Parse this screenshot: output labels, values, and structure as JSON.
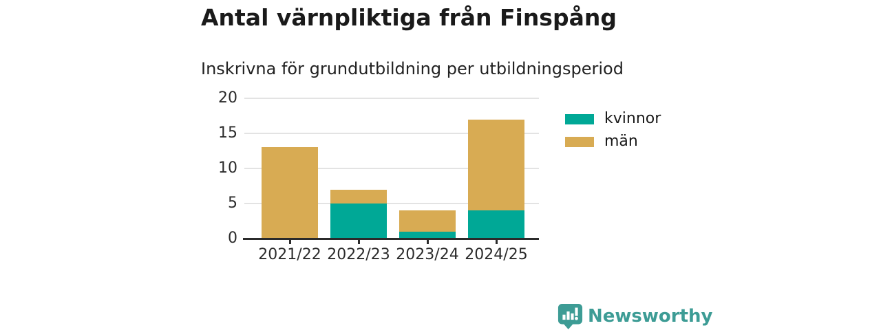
{
  "header": {
    "title": "Antal värnpliktiga från Finspång",
    "subtitle": "Inskrivna för grundutbildning per utbildningsperiod"
  },
  "chart_data": {
    "type": "bar",
    "stacked": true,
    "title": "Antal värnpliktiga från Finspång",
    "subtitle": "Inskrivna för grundutbildning per utbildningsperiod",
    "categories": [
      "2021/22",
      "2022/23",
      "2023/24",
      "2024/25"
    ],
    "series": [
      {
        "name": "kvinnor",
        "color": "#00A896",
        "values": [
          0,
          5,
          1,
          4
        ]
      },
      {
        "name": "män",
        "color": "#D8AB53",
        "values": [
          13,
          2,
          3,
          13
        ]
      }
    ],
    "totals": [
      13,
      7,
      4,
      17
    ],
    "xlabel": "",
    "ylabel": "",
    "ylim": [
      0,
      20
    ],
    "yticks": [
      0,
      5,
      10,
      15,
      20
    ],
    "grid": true,
    "legend_position": "right-of-plot"
  },
  "footer": {
    "brand": "Newsworthy",
    "brand_color": "#3D9C95",
    "logo_icon": "newsworthy-speech-bubble-chart-icon"
  },
  "colors": {
    "background": "#FFFFFF",
    "kvinnor": "#00A896",
    "man": "#D8AB53",
    "gridline": "#E3E3E3",
    "axis": "#2B2B2B",
    "text": "#1A1A1A"
  }
}
